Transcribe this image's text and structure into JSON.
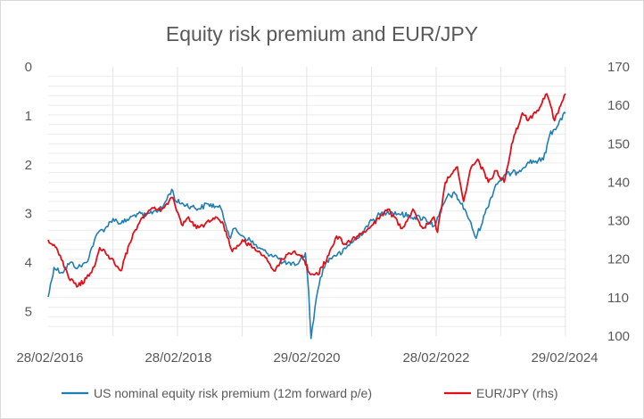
{
  "chart_data": {
    "type": "line",
    "title": "Equity risk premium and EUR/JPY",
    "x_range": [
      "2016-02-28",
      "2024-02-29"
    ],
    "x_tick_labels": [
      "28/02/2016",
      "28/02/2018",
      "29/02/2020",
      "28/02/2022",
      "29/02/2024"
    ],
    "y_left": {
      "min": 0,
      "max": 5.5,
      "inverted": true,
      "ticks": [
        "0",
        "1",
        "2",
        "3",
        "4",
        "5"
      ]
    },
    "y_right": {
      "min": 100,
      "max": 170,
      "ticks": [
        "100",
        "110",
        "120",
        "130",
        "140",
        "150",
        "160",
        "170"
      ]
    },
    "grid": true,
    "legend_position": "bottom",
    "series": [
      {
        "name": "US nominal equity risk premium (12m forward p/e)",
        "axis": "left",
        "color": "#1f7fb4",
        "points": [
          [
            "2016-02-28",
            4.7
          ],
          [
            "2016-04-01",
            4.1
          ],
          [
            "2016-05-15",
            4.2
          ],
          [
            "2016-07-01",
            4.0
          ],
          [
            "2016-08-15",
            4.1
          ],
          [
            "2016-10-01",
            4.0
          ],
          [
            "2016-11-15",
            3.55
          ],
          [
            "2016-12-15",
            3.35
          ],
          [
            "2017-01-15",
            3.3
          ],
          [
            "2017-03-01",
            3.1
          ],
          [
            "2017-04-15",
            3.2
          ],
          [
            "2017-06-01",
            3.1
          ],
          [
            "2017-07-15",
            3.0
          ],
          [
            "2017-09-01",
            3.05
          ],
          [
            "2017-10-15",
            2.95
          ],
          [
            "2017-12-01",
            2.9
          ],
          [
            "2018-01-26",
            2.5
          ],
          [
            "2018-02-20",
            2.75
          ],
          [
            "2018-04-01",
            2.8
          ],
          [
            "2018-05-15",
            2.85
          ],
          [
            "2018-07-01",
            2.9
          ],
          [
            "2018-08-15",
            2.8
          ],
          [
            "2018-10-01",
            2.85
          ],
          [
            "2018-11-01",
            2.9
          ],
          [
            "2018-12-24",
            3.5
          ],
          [
            "2019-01-15",
            3.3
          ],
          [
            "2019-03-01",
            3.45
          ],
          [
            "2019-04-15",
            3.55
          ],
          [
            "2019-06-01",
            3.7
          ],
          [
            "2019-07-15",
            3.8
          ],
          [
            "2019-09-01",
            3.85
          ],
          [
            "2019-10-15",
            4.0
          ],
          [
            "2019-12-01",
            4.05
          ],
          [
            "2020-01-15",
            4.0
          ],
          [
            "2020-02-20",
            3.8
          ],
          [
            "2020-03-10",
            4.6
          ],
          [
            "2020-03-23",
            5.55
          ],
          [
            "2020-04-15",
            4.9
          ],
          [
            "2020-05-15",
            4.3
          ],
          [
            "2020-06-15",
            4.0
          ],
          [
            "2020-08-01",
            3.85
          ],
          [
            "2020-09-15",
            3.8
          ],
          [
            "2020-11-01",
            3.6
          ],
          [
            "2020-12-15",
            3.5
          ],
          [
            "2021-02-01",
            3.25
          ],
          [
            "2021-04-01",
            3.05
          ],
          [
            "2021-06-01",
            2.95
          ],
          [
            "2021-08-01",
            3.0
          ],
          [
            "2021-10-01",
            3.05
          ],
          [
            "2021-12-31",
            3.1
          ],
          [
            "2022-02-15",
            3.25
          ],
          [
            "2022-03-15",
            3.05
          ],
          [
            "2022-05-01",
            2.65
          ],
          [
            "2022-06-16",
            2.6
          ],
          [
            "2022-08-15",
            2.95
          ],
          [
            "2022-10-12",
            3.5
          ],
          [
            "2022-12-01",
            3.0
          ],
          [
            "2023-02-01",
            2.4
          ],
          [
            "2023-04-01",
            2.2
          ],
          [
            "2023-06-01",
            2.15
          ],
          [
            "2023-08-01",
            1.95
          ],
          [
            "2023-10-27",
            1.9
          ],
          [
            "2023-12-01",
            1.4
          ],
          [
            "2024-02-29",
            0.95
          ]
        ]
      },
      {
        "name": "EUR/JPY (rhs)",
        "axis": "right",
        "color": "#e0101a",
        "points": [
          [
            "2016-02-28",
            125
          ],
          [
            "2016-04-15",
            123
          ],
          [
            "2016-06-24",
            115
          ],
          [
            "2016-08-15",
            113
          ],
          [
            "2016-10-01",
            115
          ],
          [
            "2016-11-15",
            118
          ],
          [
            "2016-12-15",
            123
          ],
          [
            "2017-02-01",
            121
          ],
          [
            "2017-04-15",
            117
          ],
          [
            "2017-06-01",
            124
          ],
          [
            "2017-08-01",
            130
          ],
          [
            "2017-10-01",
            133
          ],
          [
            "2017-12-01",
            133
          ],
          [
            "2018-02-01",
            136
          ],
          [
            "2018-03-23",
            129
          ],
          [
            "2018-05-01",
            131
          ],
          [
            "2018-06-15",
            128
          ],
          [
            "2018-08-01",
            129
          ],
          [
            "2018-10-01",
            131
          ],
          [
            "2018-11-15",
            129
          ],
          [
            "2019-01-03",
            122
          ],
          [
            "2019-03-01",
            125
          ],
          [
            "2019-05-01",
            123
          ],
          [
            "2019-07-01",
            121
          ],
          [
            "2019-08-26",
            117
          ],
          [
            "2019-10-15",
            120
          ],
          [
            "2019-12-15",
            122
          ],
          [
            "2020-02-01",
            121
          ],
          [
            "2020-03-20",
            116
          ],
          [
            "2020-05-01",
            116
          ],
          [
            "2020-07-01",
            121
          ],
          [
            "2020-08-15",
            126
          ],
          [
            "2020-10-01",
            124
          ],
          [
            "2020-12-15",
            126
          ],
          [
            "2021-02-15",
            128
          ],
          [
            "2021-06-01",
            133
          ],
          [
            "2021-08-20",
            128
          ],
          [
            "2021-10-20",
            133
          ],
          [
            "2021-12-15",
            128
          ],
          [
            "2022-02-15",
            131
          ],
          [
            "2022-03-08",
            127
          ],
          [
            "2022-04-21",
            140
          ],
          [
            "2022-06-28",
            144
          ],
          [
            "2022-08-02",
            135
          ],
          [
            "2022-09-15",
            144
          ],
          [
            "2022-10-21",
            146
          ],
          [
            "2022-12-20",
            140
          ],
          [
            "2023-02-01",
            143
          ],
          [
            "2023-03-20",
            140
          ],
          [
            "2023-05-01",
            150
          ],
          [
            "2023-06-30",
            158
          ],
          [
            "2023-08-01",
            156
          ],
          [
            "2023-09-15",
            158
          ],
          [
            "2023-11-15",
            163
          ],
          [
            "2023-12-29",
            156
          ],
          [
            "2024-02-29",
            163
          ]
        ]
      }
    ]
  }
}
